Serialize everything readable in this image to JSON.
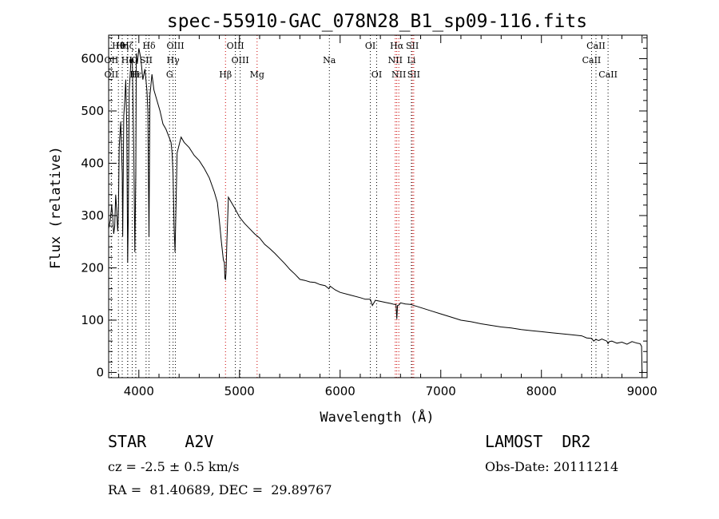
{
  "chart_data": {
    "type": "line",
    "title": "spec-55910-GAC_078N28_B1_sp09-116.fits",
    "xlabel": "Wavelength (Å)",
    "ylabel": "Flux (relative)",
    "xlim": [
      3700,
      9050
    ],
    "ylim": [
      -10,
      645
    ],
    "xticks": [
      4000,
      5000,
      6000,
      7000,
      8000,
      9000
    ],
    "yticks": [
      0,
      100,
      200,
      300,
      400,
      500,
      600
    ],
    "grid": false,
    "series": [
      {
        "name": "spectrum",
        "x": [
          3700,
          3715,
          3730,
          3740,
          3750,
          3760,
          3770,
          3780,
          3790,
          3797,
          3805,
          3820,
          3835,
          3840,
          3850,
          3860,
          3870,
          3880,
          3889,
          3895,
          3905,
          3920,
          3935,
          3950,
          3960,
          3970,
          3975,
          3985,
          4000,
          4020,
          4040,
          4060,
          4080,
          4090,
          4101,
          4110,
          4130,
          4150,
          4180,
          4210,
          4240,
          4270,
          4300,
          4320,
          4330,
          4340,
          4350,
          4360,
          4380,
          4420,
          4450,
          4500,
          4550,
          4600,
          4650,
          4700,
          4750,
          4780,
          4800,
          4820,
          4840,
          4850,
          4855,
          4861,
          4866,
          4875,
          4890,
          4920,
          4950,
          5000,
          5050,
          5100,
          5150,
          5200,
          5250,
          5300,
          5350,
          5400,
          5450,
          5500,
          5550,
          5600,
          5650,
          5700,
          5750,
          5800,
          5850,
          5889,
          5900,
          5950,
          6000,
          6100,
          6200,
          6250,
          6280,
          6300,
          6320,
          6350,
          6400,
          6450,
          6500,
          6540,
          6555,
          6563,
          6570,
          6585,
          6600,
          6650,
          6700,
          6800,
          6900,
          7000,
          7100,
          7200,
          7300,
          7400,
          7500,
          7600,
          7650,
          7700,
          7800,
          7900,
          8000,
          8100,
          8200,
          8300,
          8400,
          8450,
          8500,
          8520,
          8540,
          8555,
          8570,
          8600,
          8650,
          8662,
          8675,
          8700,
          8750,
          8800,
          8850,
          8900,
          8950,
          8980,
          8995,
          9000
        ],
        "values": [
          275,
          290,
          320,
          300,
          265,
          280,
          340,
          310,
          270,
          300,
          430,
          480,
          380,
          260,
          490,
          520,
          560,
          470,
          210,
          300,
          540,
          590,
          600,
          420,
          230,
          380,
          610,
          590,
          620,
          600,
          560,
          580,
          540,
          500,
          260,
          530,
          570,
          540,
          520,
          500,
          475,
          465,
          450,
          440,
          420,
          380,
          280,
          230,
          420,
          450,
          440,
          430,
          415,
          405,
          390,
          372,
          345,
          325,
          290,
          250,
          215,
          210,
          180,
          178,
          190,
          250,
          335,
          325,
          315,
          297,
          285,
          275,
          265,
          257,
          245,
          237,
          228,
          218,
          208,
          197,
          188,
          178,
          176,
          173,
          172,
          168,
          166,
          160,
          165,
          158,
          153,
          148,
          143,
          140,
          140,
          140,
          128,
          138,
          136,
          134,
          132,
          130,
          130,
          102,
          128,
          129,
          133,
          131,
          130,
          124,
          118,
          112,
          106,
          100,
          97,
          93,
          90,
          87,
          86,
          85,
          82,
          80,
          78,
          76,
          74,
          72,
          70,
          66,
          65,
          60,
          63,
          62,
          61,
          64,
          60,
          55,
          59,
          60,
          56,
          58,
          54,
          59,
          56,
          55,
          50,
          0
        ]
      }
    ],
    "lines": [
      {
        "label": "Hθ",
        "wl": 3797,
        "row": 0,
        "color": "#000000"
      },
      {
        "label": "Hη",
        "wl": 3835,
        "row": 0,
        "color": "#000000"
      },
      {
        "label": "Hζ",
        "wl": 3889,
        "row": 0,
        "color": "#000000"
      },
      {
        "label": "Hδ",
        "wl": 4101,
        "row": 0,
        "color": "#000000"
      },
      {
        "label": "OIII",
        "wl": 4363,
        "row": 0,
        "color": "#000000"
      },
      {
        "label": "OIII",
        "wl": 4959,
        "row": 0,
        "color": "#000000"
      },
      {
        "label": "OI",
        "wl": 6300,
        "row": 0,
        "color": "#000000"
      },
      {
        "label": "Hα",
        "wl": 6563,
        "row": 0,
        "color": "#cc0000"
      },
      {
        "label": "SII",
        "wl": 6717,
        "row": 0,
        "color": "#cc0000"
      },
      {
        "label": "CaII",
        "wl": 8542,
        "row": 0,
        "color": "#000000"
      },
      {
        "label": "OII",
        "wl": 3727,
        "row": 1,
        "color": "#000000"
      },
      {
        "label": "He",
        "wl": 3889,
        "row": 1,
        "color": "#000000"
      },
      {
        "label": "K",
        "wl": 3934,
        "row": 1,
        "color": "#000000"
      },
      {
        "label": "SII",
        "wl": 4072,
        "row": 1,
        "color": "#000000"
      },
      {
        "label": "Hγ",
        "wl": 4340,
        "row": 1,
        "color": "#000000"
      },
      {
        "label": "OIII",
        "wl": 5007,
        "row": 1,
        "color": "#000000"
      },
      {
        "label": "Na",
        "wl": 5893,
        "row": 1,
        "color": "#000000"
      },
      {
        "label": "NII",
        "wl": 6548,
        "row": 1,
        "color": "#cc0000"
      },
      {
        "label": "Li",
        "wl": 6708,
        "row": 1,
        "color": "#000000"
      },
      {
        "label": "CaII",
        "wl": 8498,
        "row": 1,
        "color": "#000000"
      },
      {
        "label": "OII",
        "wl": 3727,
        "row": 2,
        "color": "#000000"
      },
      {
        "label": "Hε",
        "wl": 3970,
        "row": 2,
        "color": "#000000"
      },
      {
        "label": "H",
        "wl": 3969,
        "row": 2,
        "color": "#000000"
      },
      {
        "label": "G",
        "wl": 4305,
        "row": 2,
        "color": "#000000"
      },
      {
        "label": "Hβ",
        "wl": 4861,
        "row": 2,
        "color": "#cc0000"
      },
      {
        "label": "Mg",
        "wl": 5175,
        "row": 2,
        "color": "#cc0000"
      },
      {
        "label": "OI",
        "wl": 6363,
        "row": 2,
        "color": "#000000"
      },
      {
        "label": "NII",
        "wl": 6583,
        "row": 2,
        "color": "#cc0000"
      },
      {
        "label": "SII",
        "wl": 6731,
        "row": 2,
        "color": "#cc0000"
      },
      {
        "label": "CaII",
        "wl": 8662,
        "row": 2,
        "color": "#000000"
      }
    ]
  },
  "info": {
    "classification": "STAR    A2V",
    "survey": "LAMOST  DR2",
    "redshift": "cz = -2.5 ± 0.5 km/s",
    "obs_date": "Obs-Date: 20111214",
    "coords": "RA =  81.40689, DEC =  29.89767"
  }
}
